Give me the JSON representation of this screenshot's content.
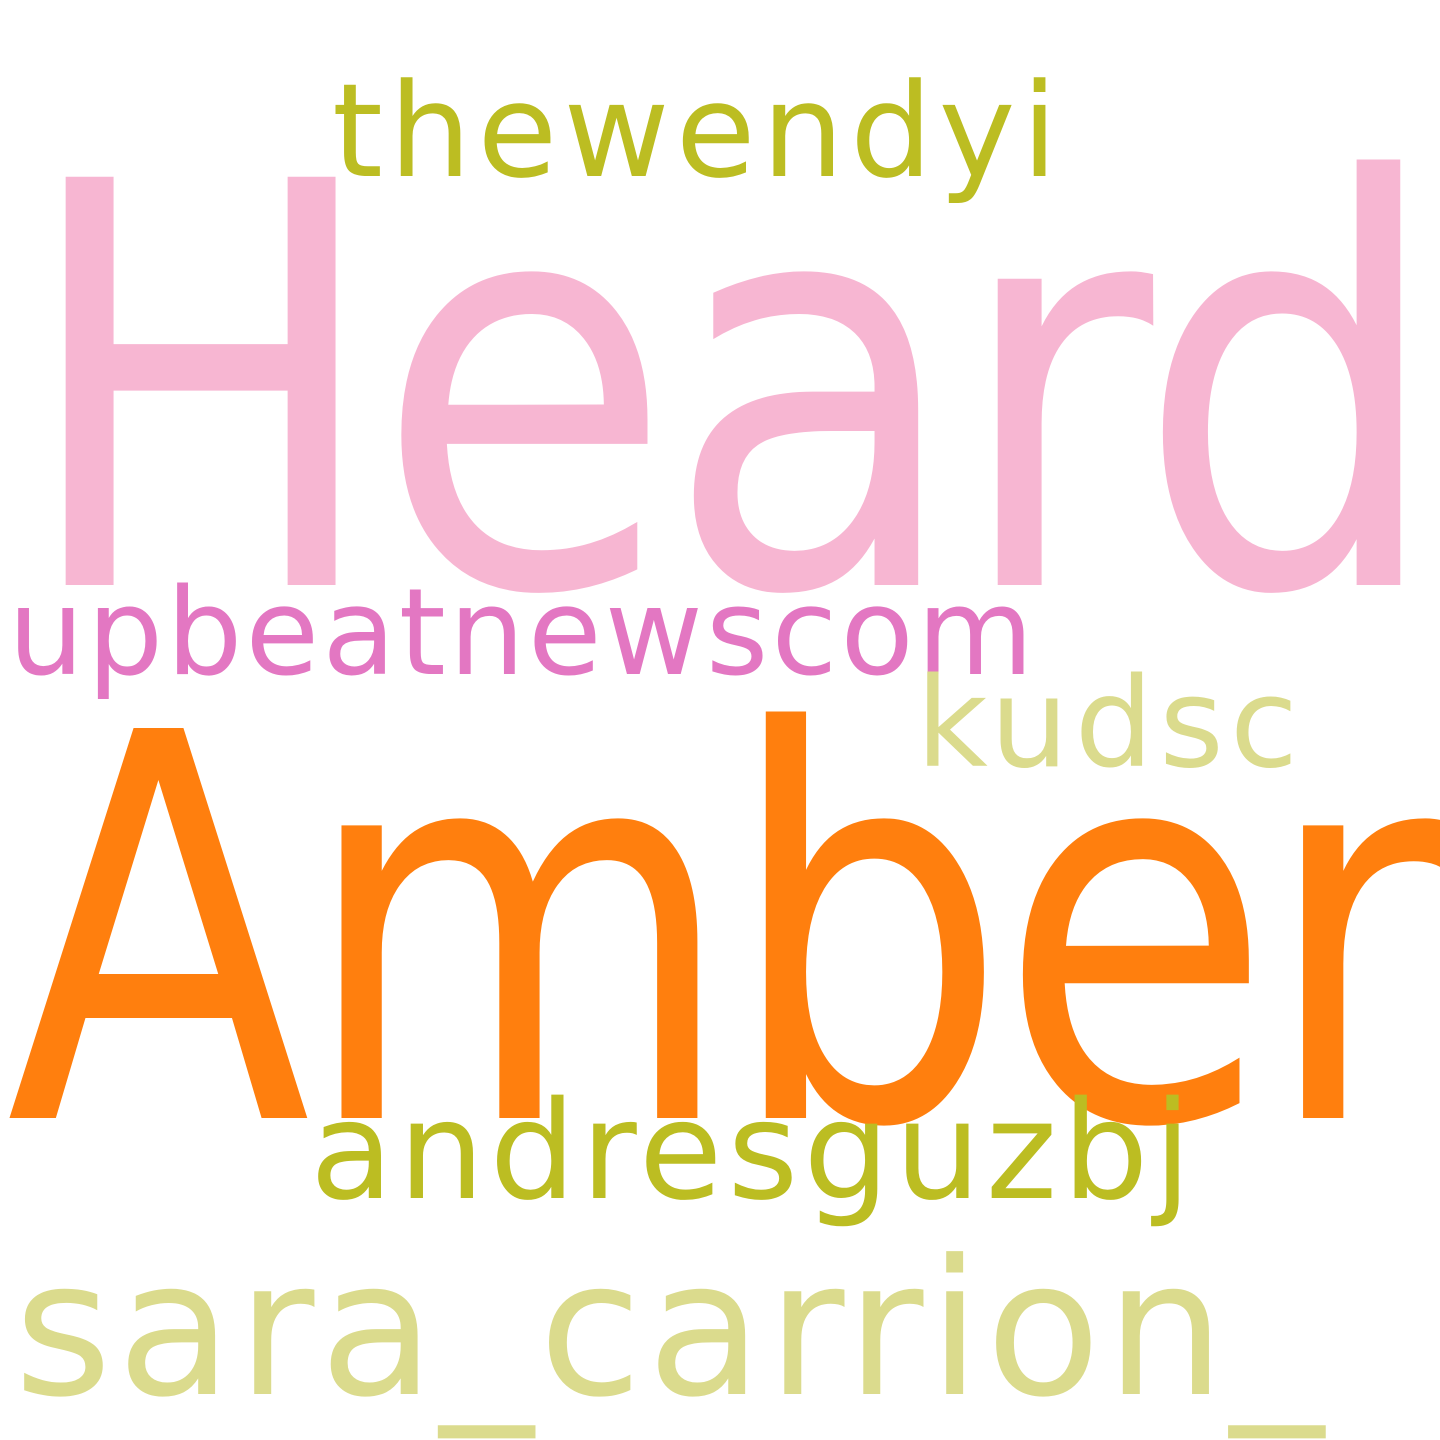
{
  "words": {
    "heard": {
      "text": "Heard",
      "color": "#F7B6D2"
    },
    "amber": {
      "text": "Amber",
      "color": "#FF7F0E"
    },
    "thewendyi": {
      "text": "thewendyi",
      "color": "#BCBD22"
    },
    "upbeatnewscom": {
      "text": "upbeatnewscom",
      "color": "#E377C2"
    },
    "kudsc": {
      "text": "kudsc",
      "color": "#DBDB8D"
    },
    "andresguzbj": {
      "text": "andresguzbj",
      "color": "#BCBD22"
    },
    "sara_carrion_": {
      "text": "sara_carrion_",
      "color": "#DBDB8D"
    }
  },
  "background": "#FFFFFF"
}
